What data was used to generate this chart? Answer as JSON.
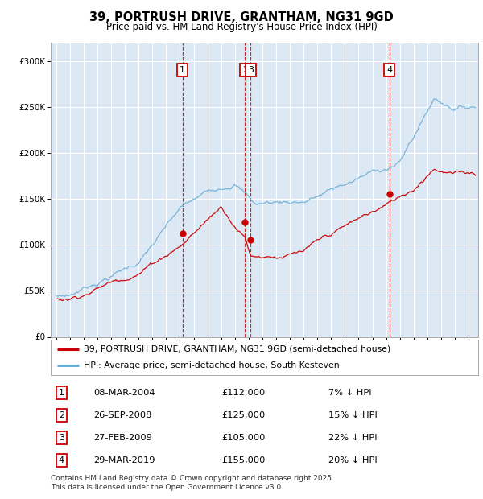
{
  "title": "39, PORTRUSH DRIVE, GRANTHAM, NG31 9GD",
  "subtitle": "Price paid vs. HM Land Registry's House Price Index (HPI)",
  "ylim": [
    0,
    320000
  ],
  "yticks": [
    0,
    50000,
    100000,
    150000,
    200000,
    250000,
    300000
  ],
  "background_color": "#dce9f5",
  "line_color_hpi": "#6baed6",
  "line_color_price": "#cc0000",
  "dot_color": "#cc0000",
  "transactions": [
    {
      "num": 1,
      "date": "08-MAR-2004",
      "price": 112000,
      "pct": "7%",
      "x_year": 2004.19
    },
    {
      "num": 2,
      "date": "26-SEP-2008",
      "price": 125000,
      "pct": "15%",
      "x_year": 2008.73
    },
    {
      "num": 3,
      "date": "27-FEB-2009",
      "price": 105000,
      "pct": "22%",
      "x_year": 2009.15
    },
    {
      "num": 4,
      "date": "29-MAR-2019",
      "price": 155000,
      "pct": "20%",
      "x_year": 2019.24
    }
  ],
  "legend_label_price": "39, PORTRUSH DRIVE, GRANTHAM, NG31 9GD (semi-detached house)",
  "legend_label_hpi": "HPI: Average price, semi-detached house, South Kesteven",
  "footer": "Contains HM Land Registry data © Crown copyright and database right 2025.\nThis data is licensed under the Open Government Licence v3.0.",
  "xtick_years": [
    1995,
    1996,
    1997,
    1998,
    1999,
    2000,
    2001,
    2002,
    2003,
    2004,
    2005,
    2006,
    2007,
    2008,
    2009,
    2010,
    2011,
    2012,
    2013,
    2014,
    2015,
    2016,
    2017,
    2018,
    2019,
    2020,
    2021,
    2022,
    2023,
    2024,
    2025
  ]
}
